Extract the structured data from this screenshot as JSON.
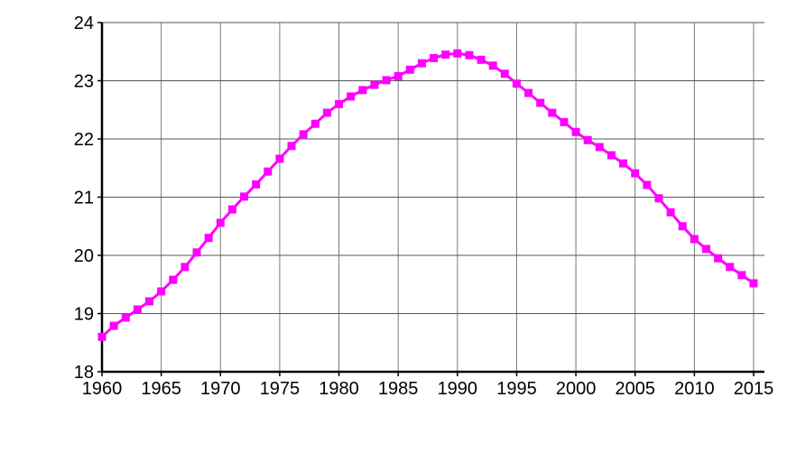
{
  "chart_data": {
    "type": "line",
    "title": "",
    "xlabel": "",
    "ylabel": "",
    "xlim": [
      1960,
      2015
    ],
    "ylim": [
      18,
      24
    ],
    "grid": true,
    "x_ticks": [
      "1960",
      "1965",
      "1970",
      "1975",
      "1980",
      "1985",
      "1990",
      "1995",
      "2000",
      "2005",
      "2010",
      "2015"
    ],
    "y_ticks": [
      "18",
      "19",
      "20",
      "21",
      "22",
      "23",
      "24"
    ],
    "series_color": "#ff00ff",
    "marker": "square",
    "x": [
      1960,
      1961,
      1962,
      1963,
      1964,
      1965,
      1966,
      1967,
      1968,
      1969,
      1970,
      1971,
      1972,
      1973,
      1974,
      1975,
      1976,
      1977,
      1978,
      1979,
      1980,
      1981,
      1982,
      1983,
      1984,
      1985,
      1986,
      1987,
      1988,
      1989,
      1990,
      1991,
      1992,
      1993,
      1994,
      1995,
      1996,
      1997,
      1998,
      1999,
      2000,
      2001,
      2002,
      2003,
      2004,
      2005,
      2006,
      2007,
      2008,
      2009,
      2010,
      2011,
      2012,
      2013,
      2014,
      2015
    ],
    "y": [
      18.6,
      18.79,
      18.93,
      19.07,
      19.21,
      19.38,
      19.58,
      19.8,
      20.05,
      20.3,
      20.56,
      20.79,
      21.01,
      21.22,
      21.44,
      21.66,
      21.88,
      22.08,
      22.26,
      22.45,
      22.6,
      22.73,
      22.84,
      22.93,
      23.01,
      23.08,
      23.19,
      23.3,
      23.39,
      23.45,
      23.47,
      23.44,
      23.36,
      23.26,
      23.12,
      22.95,
      22.79,
      22.62,
      22.45,
      22.29,
      22.12,
      21.98,
      21.86,
      21.72,
      21.58,
      21.41,
      21.21,
      20.98,
      20.74,
      20.5,
      20.28,
      20.11,
      19.95,
      19.8,
      19.66,
      19.52
    ]
  }
}
